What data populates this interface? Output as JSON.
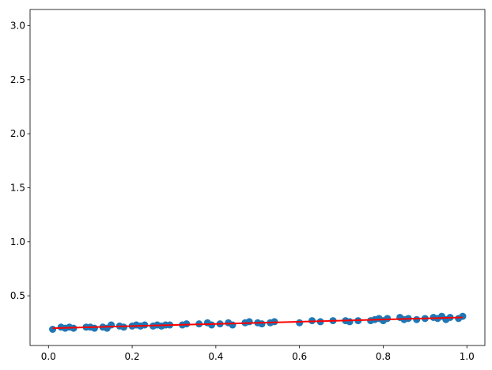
{
  "chart_data": {
    "type": "scatter",
    "xlim": [
      -0.044,
      1.043
    ],
    "ylim": [
      0.04,
      3.15
    ],
    "xticks": [
      {
        "value": 0,
        "label": "0.0"
      },
      0.2,
      0.4,
      0.6,
      0.8,
      {
        "value": 1,
        "label": "1.0"
      }
    ],
    "yticks": [
      0.5,
      {
        "value": 1,
        "label": "1.0"
      },
      1.5,
      {
        "value": 2,
        "label": "2.0"
      },
      2.5,
      {
        "value": 3,
        "label": "3.0"
      }
    ],
    "series": [
      {
        "type": "scatter",
        "color": "#1f77b4",
        "x": [
          0.01,
          0.03,
          0.04,
          0.05,
          0.06,
          0.09,
          0.1,
          0.11,
          0.13,
          0.14,
          0.15,
          0.17,
          0.18,
          0.2,
          0.21,
          0.22,
          0.23,
          0.25,
          0.26,
          0.27,
          0.28,
          0.29,
          0.32,
          0.33,
          0.36,
          0.38,
          0.39,
          0.41,
          0.43,
          0.44,
          0.47,
          0.48,
          0.5,
          0.51,
          0.53,
          0.54,
          0.6,
          0.63,
          0.65,
          0.68,
          0.71,
          0.72,
          0.74,
          0.77,
          0.78,
          0.79,
          0.8,
          0.81,
          0.84,
          0.85,
          0.86,
          0.88,
          0.9,
          0.92,
          0.93,
          0.94,
          0.95,
          0.96,
          0.98,
          0.99
        ],
        "values": [
          0.19,
          0.21,
          0.2,
          0.21,
          0.2,
          0.21,
          0.21,
          0.2,
          0.21,
          0.2,
          0.23,
          0.22,
          0.21,
          0.22,
          0.23,
          0.22,
          0.23,
          0.22,
          0.23,
          0.22,
          0.23,
          0.23,
          0.23,
          0.24,
          0.24,
          0.25,
          0.23,
          0.24,
          0.25,
          0.23,
          0.25,
          0.26,
          0.25,
          0.24,
          0.25,
          0.26,
          0.25,
          0.27,
          0.26,
          0.27,
          0.27,
          0.26,
          0.27,
          0.27,
          0.28,
          0.29,
          0.27,
          0.29,
          0.3,
          0.28,
          0.29,
          0.28,
          0.29,
          0.3,
          0.29,
          0.31,
          0.28,
          0.3,
          0.29,
          0.31
        ]
      },
      {
        "type": "line",
        "color": "#ff0000",
        "x": [
          0.01,
          0.99
        ],
        "values": [
          0.2,
          0.3
        ]
      }
    ]
  }
}
